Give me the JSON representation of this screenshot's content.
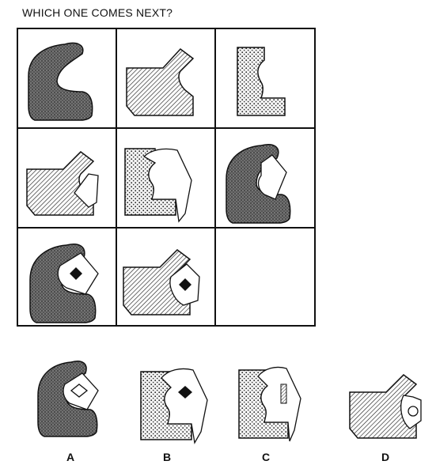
{
  "question": "WHICH ONE COMES NEXT?",
  "grid": {
    "rows": 3,
    "cols": 3,
    "cells": [
      {
        "shape": "hook",
        "fill": "dark-texture",
        "overlay": "none"
      },
      {
        "shape": "notch",
        "fill": "hatch",
        "overlay": "none"
      },
      {
        "shape": "bracket",
        "fill": "dots",
        "overlay": "none"
      },
      {
        "shape": "notch",
        "fill": "hatch",
        "overlay": "white-card"
      },
      {
        "shape": "bracket",
        "fill": "dots",
        "overlay": "white-card"
      },
      {
        "shape": "hook",
        "fill": "dark-texture",
        "overlay": "white-card"
      },
      {
        "shape": "hook",
        "fill": "dark-texture",
        "overlay": "white-card-black-diamond"
      },
      {
        "shape": "notch",
        "fill": "hatch",
        "overlay": "white-card-black-diamond"
      },
      {
        "shape": "empty",
        "fill": "none",
        "overlay": "none"
      }
    ]
  },
  "options": [
    {
      "label": "A",
      "shape": "hook",
      "fill": "dark-texture",
      "overlay": "white-card-white-diamond"
    },
    {
      "label": "B",
      "shape": "bracket",
      "fill": "dots",
      "overlay": "white-card-black-diamond"
    },
    {
      "label": "C",
      "shape": "bracket",
      "fill": "dots",
      "overlay": "white-card-hatched-bar"
    },
    {
      "label": "D",
      "shape": "notch",
      "fill": "hatch",
      "overlay": "white-card-circle"
    }
  ]
}
